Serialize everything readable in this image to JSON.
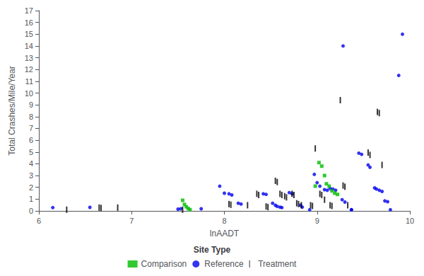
{
  "chart_data": {
    "type": "scatter",
    "xlabel": "lnAADT",
    "ylabel": "Total Crashes/Mile/Year",
    "legend_title": "Site Type",
    "xlim": [
      6,
      10
    ],
    "ylim": [
      0,
      17
    ],
    "xticks": [
      6,
      7,
      8,
      9,
      10
    ],
    "yticks": [
      0,
      1,
      2,
      3,
      4,
      5,
      6,
      7,
      8,
      9,
      10,
      11,
      12,
      13,
      14,
      15,
      16,
      17
    ],
    "grid": false,
    "legend": "bottom",
    "series": [
      {
        "name": "Comparison",
        "color": "#00bb00",
        "marker": "square",
        "values": [
          [
            7.55,
            0.9
          ],
          [
            7.57,
            0.55
          ],
          [
            7.59,
            0.35
          ],
          [
            7.61,
            0.2
          ],
          [
            7.63,
            0.1
          ],
          [
            9.02,
            4.1
          ],
          [
            9.05,
            3.8
          ],
          [
            9.08,
            3.0
          ],
          [
            9.1,
            2.3
          ],
          [
            9.13,
            2.1
          ],
          [
            9.16,
            1.7
          ],
          [
            9.19,
            1.5
          ],
          [
            9.22,
            1.4
          ],
          [
            8.98,
            2.1
          ]
        ]
      },
      {
        "name": "Reference",
        "color": "#0000ee",
        "marker": "point",
        "values": [
          [
            6.15,
            0.28
          ],
          [
            6.55,
            0.3
          ],
          [
            7.5,
            0.15
          ],
          [
            7.53,
            0.18
          ],
          [
            7.75,
            0.18
          ],
          [
            7.95,
            2.1
          ],
          [
            8.0,
            1.5
          ],
          [
            8.05,
            1.45
          ],
          [
            8.08,
            1.35
          ],
          [
            8.15,
            0.65
          ],
          [
            8.18,
            0.58
          ],
          [
            8.42,
            1.45
          ],
          [
            8.45,
            1.4
          ],
          [
            8.52,
            0.65
          ],
          [
            8.55,
            0.48
          ],
          [
            8.57,
            0.38
          ],
          [
            8.6,
            0.32
          ],
          [
            8.62,
            0.28
          ],
          [
            8.7,
            1.55
          ],
          [
            8.73,
            1.45
          ],
          [
            8.82,
            0.48
          ],
          [
            8.84,
            0.32
          ],
          [
            8.92,
            0.1
          ],
          [
            8.97,
            3.1
          ],
          [
            9.0,
            2.4
          ],
          [
            9.03,
            2.1
          ],
          [
            9.08,
            1.8
          ],
          [
            9.11,
            1.75
          ],
          [
            9.14,
            1.9
          ],
          [
            9.17,
            1.85
          ],
          [
            9.2,
            1.75
          ],
          [
            9.27,
            0.95
          ],
          [
            9.3,
            0.75
          ],
          [
            9.37,
            0.1
          ],
          [
            9.45,
            4.9
          ],
          [
            9.48,
            4.8
          ],
          [
            9.55,
            3.9
          ],
          [
            9.57,
            3.7
          ],
          [
            9.62,
            1.95
          ],
          [
            9.64,
            1.85
          ],
          [
            9.67,
            1.75
          ],
          [
            9.7,
            1.65
          ],
          [
            9.73,
            0.85
          ],
          [
            9.76,
            0.78
          ],
          [
            9.79,
            0.1
          ],
          [
            9.37,
            0.1
          ],
          [
            9.88,
            11.5
          ],
          [
            9.92,
            15.0
          ],
          [
            9.28,
            14.0
          ]
        ]
      },
      {
        "name": "Treatment",
        "color": "#000000",
        "marker": "vline",
        "values": [
          [
            6.3,
            0.1
          ],
          [
            6.65,
            0.28
          ],
          [
            6.67,
            0.25
          ],
          [
            6.85,
            0.28
          ],
          [
            7.55,
            0.1
          ],
          [
            8.05,
            0.58
          ],
          [
            8.07,
            0.52
          ],
          [
            8.25,
            0.48
          ],
          [
            8.35,
            1.45
          ],
          [
            8.37,
            1.35
          ],
          [
            8.45,
            0.38
          ],
          [
            8.47,
            0.32
          ],
          [
            8.55,
            2.55
          ],
          [
            8.57,
            2.45
          ],
          [
            8.6,
            1.45
          ],
          [
            8.62,
            1.35
          ],
          [
            8.65,
            1.25
          ],
          [
            8.67,
            1.15
          ],
          [
            8.73,
            1.45
          ],
          [
            8.75,
            1.35
          ],
          [
            8.78,
            0.65
          ],
          [
            8.8,
            0.58
          ],
          [
            8.83,
            0.48
          ],
          [
            8.93,
            0.48
          ],
          [
            8.95,
            0.42
          ],
          [
            8.98,
            5.3
          ],
          [
            9.03,
            1.45
          ],
          [
            9.05,
            1.35
          ],
          [
            9.08,
            0.95
          ],
          [
            9.14,
            0.48
          ],
          [
            9.16,
            0.42
          ],
          [
            9.25,
            9.4
          ],
          [
            9.28,
            2.15
          ],
          [
            9.3,
            2.05
          ],
          [
            9.33,
            0.48
          ],
          [
            9.55,
            4.95
          ],
          [
            9.57,
            4.75
          ],
          [
            9.65,
            8.4
          ],
          [
            9.67,
            8.3
          ],
          [
            9.7,
            3.9
          ]
        ]
      }
    ]
  }
}
